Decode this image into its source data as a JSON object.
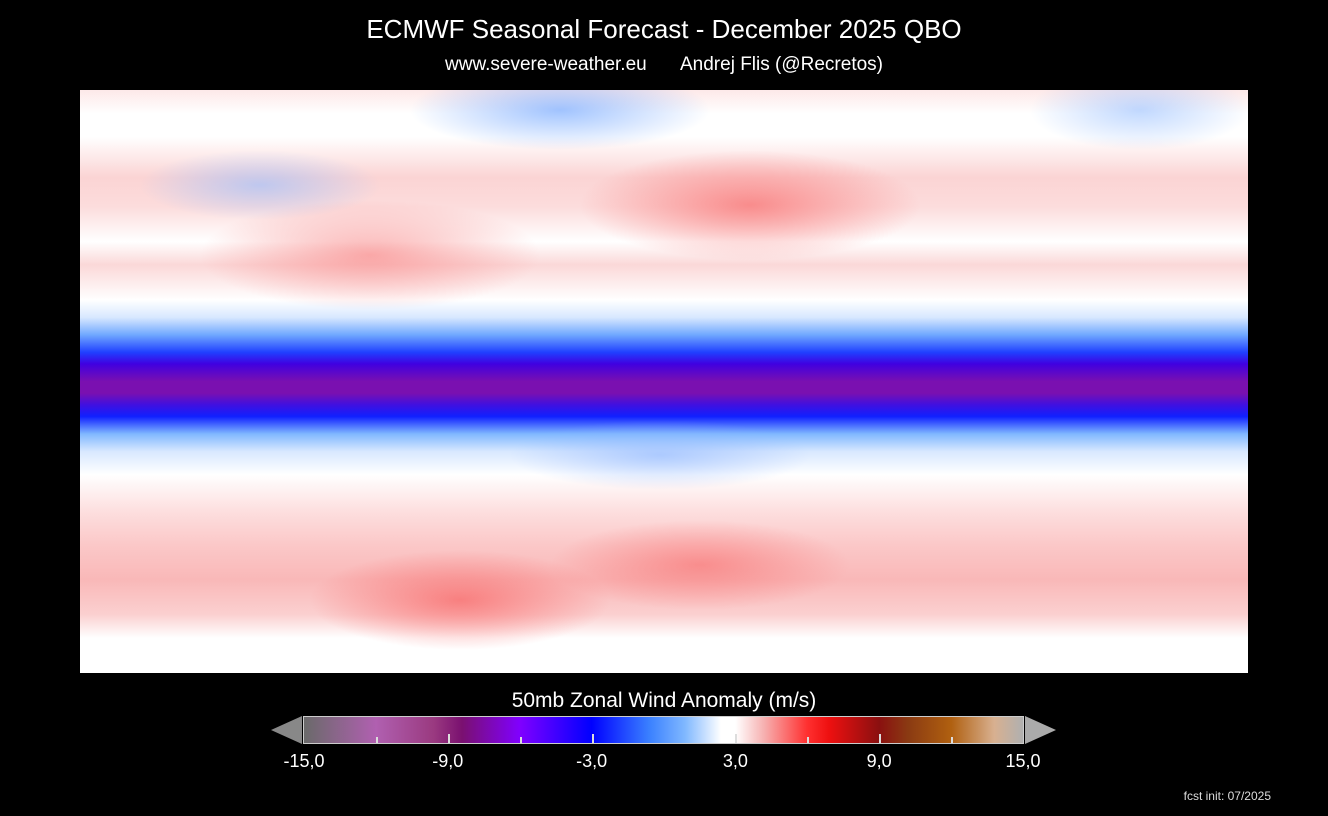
{
  "header": {
    "title": "ECMWF Seasonal Forecast - December 2025 QBO",
    "website": "www.severe-weather.eu",
    "author": "Andrej Flis (@Recretos)"
  },
  "map": {
    "type": "heatmap",
    "projection": "equirectangular world",
    "variable": "50mb zonal wind anomaly",
    "pattern": "strong negative (easterly) anomaly along the equator, weak positive anomalies in mid-latitudes of both hemispheres"
  },
  "colorbar": {
    "title": "50mb Zonal Wind Anomaly (m/s)",
    "min": -15,
    "max": 15,
    "tick_labels": [
      "-15,0",
      "-9,0",
      "-3,0",
      "3,0",
      "9,0",
      "15,0"
    ],
    "minor_ticks": [
      -12,
      -6,
      6,
      12
    ],
    "colors": [
      "#6a6a6a",
      "#b060b0",
      "#7a1070",
      "#8000ff",
      "#0000ff",
      "#80b8ff",
      "#ffffff",
      "#f6b0b0",
      "#ff3030",
      "#8a1010",
      "#b06010",
      "#d8b090",
      "#b0b0b0"
    ]
  },
  "footer": {
    "init": "fcst init: 07/2025"
  }
}
